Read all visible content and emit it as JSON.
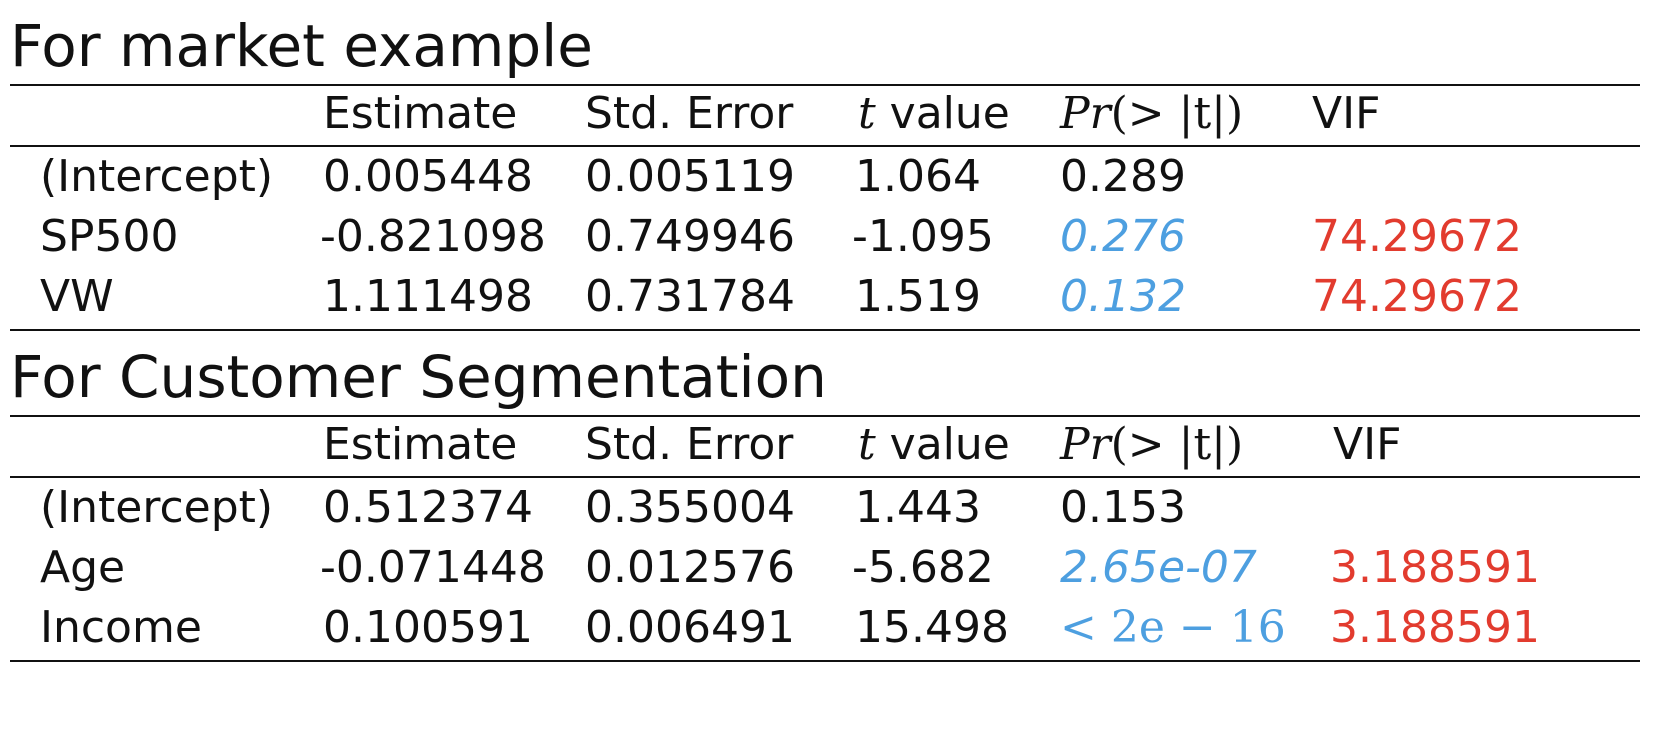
{
  "colors": {
    "text": "#111111",
    "pvalue_highlight": "#4d9fe0",
    "vif_highlight": "#e23b2e"
  },
  "sections": [
    {
      "title": "For market example",
      "headers": {
        "estimate": "Estimate",
        "std_error": "Std. Error",
        "t_var": "t",
        "t_rest": " value",
        "pr_var": "Pr",
        "pr_rest": "(> |t|)",
        "vif": "VIF"
      },
      "rows": [
        {
          "term": "(Intercept)",
          "estimate": "0.005448",
          "std_error": "0.005119",
          "t_value": "1.064",
          "p_value": "0.289",
          "vif": ""
        },
        {
          "term": "SP500",
          "estimate": "-0.821098",
          "std_error": "0.749946",
          "t_value": "-1.095",
          "p_value": "0.276",
          "vif": "74.29672"
        },
        {
          "term": "VW",
          "estimate": "1.111498",
          "std_error": "0.731784",
          "t_value": "1.519",
          "p_value": "0.132",
          "vif": "74.29672"
        }
      ]
    },
    {
      "title": "For Customer Segmentation",
      "headers": {
        "estimate": "Estimate",
        "std_error": "Std. Error",
        "t_var": "t",
        "t_rest": " value",
        "pr_var": "Pr",
        "pr_rest": "(> |t|)",
        "vif": "VIF"
      },
      "rows": [
        {
          "term": "(Intercept)",
          "estimate": "0.512374",
          "std_error": "0.355004",
          "t_value": "1.443",
          "p_value": "0.153",
          "vif": ""
        },
        {
          "term": "Age",
          "estimate": "-0.071448",
          "std_error": "0.012576",
          "t_value": "-5.682",
          "p_value": "2.65e-07",
          "vif": "3.188591"
        },
        {
          "term": "Income",
          "estimate": "0.100591",
          "std_error": "0.006491",
          "t_value": "15.498",
          "p_value": "< 2e − 16",
          "vif": "3.188591"
        }
      ]
    }
  ]
}
